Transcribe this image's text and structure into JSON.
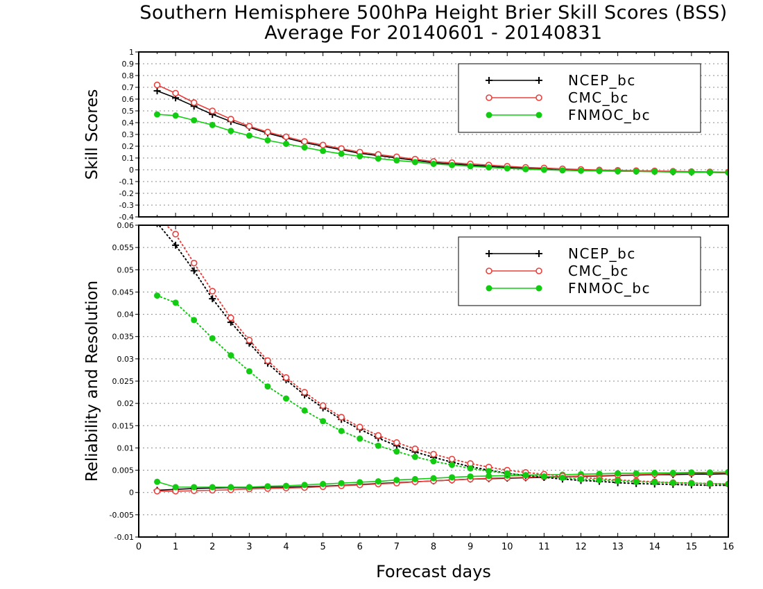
{
  "title": "Southern Hemisphere 500hPa Height Brier Skill Scores (BSS)",
  "subtitle": "Average For 20140601 - 20140831",
  "colors": {
    "ncep": "#000000",
    "cmc": "#e8403c",
    "fnmoc": "#11cc11",
    "grid": "#888888"
  },
  "chart_data": [
    {
      "type": "line",
      "ylabel": "Skill Scores",
      "ylim": [
        -0.4,
        1
      ],
      "y_ticks": [
        "1",
        "0.9",
        "0.8",
        "0.7",
        "0.6",
        "0.5",
        "0.4",
        "0.3",
        "0.2",
        "0.1",
        "0",
        "-0.1",
        "-0.2",
        "-0.3",
        "-0.4"
      ],
      "grid": true,
      "legend_position": "top-right",
      "x": [
        0.5,
        1,
        1.5,
        2,
        2.5,
        3,
        3.5,
        4,
        4.5,
        5,
        5.5,
        6,
        6.5,
        7,
        7.5,
        8,
        8.5,
        9,
        9.5,
        10,
        10.5,
        11,
        11.5,
        12,
        12.5,
        13,
        13.5,
        14,
        14.5,
        15,
        15.5,
        16
      ],
      "series": [
        {
          "name": "NCEP_bc",
          "marker": "plus",
          "values": [
            0.67,
            0.61,
            0.54,
            0.47,
            0.41,
            0.36,
            0.31,
            0.27,
            0.23,
            0.2,
            0.17,
            0.14,
            0.12,
            0.1,
            0.08,
            0.06,
            0.05,
            0.04,
            0.03,
            0.02,
            0.015,
            0.01,
            0.005,
            0,
            -0.005,
            -0.01,
            -0.012,
            -0.015,
            -0.018,
            -0.02,
            -0.022,
            -0.025
          ]
        },
        {
          "name": "CMC_bc",
          "marker": "circle-open",
          "values": [
            0.72,
            0.65,
            0.57,
            0.5,
            0.43,
            0.37,
            0.32,
            0.28,
            0.24,
            0.21,
            0.18,
            0.15,
            0.13,
            0.11,
            0.09,
            0.07,
            0.06,
            0.05,
            0.04,
            0.03,
            0.02,
            0.015,
            0.008,
            0.003,
            -0.002,
            -0.005,
            -0.008,
            -0.01,
            -0.013,
            -0.016,
            -0.018,
            -0.02
          ]
        },
        {
          "name": "FNMOC_bc",
          "marker": "circle-filled",
          "values": [
            0.47,
            0.46,
            0.42,
            0.38,
            0.33,
            0.29,
            0.25,
            0.22,
            0.19,
            0.16,
            0.135,
            0.115,
            0.095,
            0.08,
            0.065,
            0.05,
            0.04,
            0.03,
            0.02,
            0.012,
            0.005,
            0,
            -0.005,
            -0.008,
            -0.01,
            -0.012,
            -0.014,
            -0.016,
            -0.018,
            -0.02,
            -0.022,
            -0.025
          ]
        }
      ]
    },
    {
      "type": "line",
      "xlabel": "Forecast days",
      "ylabel": "Reliability and Resolution",
      "ylim": [
        -0.01,
        0.06
      ],
      "y_ticks": [
        "0.06",
        "0.055",
        "0.05",
        "0.045",
        "0.04",
        "0.035",
        "0.03",
        "0.025",
        "0.02",
        "0.015",
        "0.01",
        "0.005",
        "0",
        "-0.005",
        "-0.01"
      ],
      "xlim": [
        0,
        16
      ],
      "x_ticks": [
        "0",
        "1",
        "2",
        "3",
        "4",
        "5",
        "6",
        "7",
        "8",
        "9",
        "10",
        "11",
        "12",
        "13",
        "14",
        "15",
        "16"
      ],
      "grid": true,
      "legend_position": "top-right",
      "x": [
        0.5,
        1,
        1.5,
        2,
        2.5,
        3,
        3.5,
        4,
        4.5,
        5,
        5.5,
        6,
        6.5,
        7,
        7.5,
        8,
        8.5,
        9,
        9.5,
        10,
        10.5,
        11,
        11.5,
        12,
        12.5,
        13,
        13.5,
        14,
        14.5,
        15,
        15.5,
        16
      ],
      "series": [
        {
          "name": "NCEP_bc",
          "style": "solid",
          "marker": "plus",
          "values": [
            0.0005,
            0.0007,
            0.0009,
            0.001,
            0.0011,
            0.0011,
            0.0012,
            0.0012,
            0.0013,
            0.0014,
            0.0016,
            0.0018,
            0.002,
            0.0022,
            0.0024,
            0.0026,
            0.0028,
            0.003,
            0.0031,
            0.0032,
            0.0033,
            0.0034,
            0.0035,
            0.0036,
            0.0037,
            0.0038,
            0.0039,
            0.004,
            0.004,
            0.0041,
            0.0041,
            0.0042
          ]
        },
        {
          "name": "CMC_bc",
          "style": "solid",
          "marker": "circle-open",
          "values": [
            0.0003,
            0.0003,
            0.0004,
            0.0005,
            0.0006,
            0.0008,
            0.0009,
            0.001,
            0.0011,
            0.0013,
            0.0015,
            0.0017,
            0.0019,
            0.0021,
            0.0024,
            0.0026,
            0.0028,
            0.003,
            0.0032,
            0.0033,
            0.0034,
            0.0035,
            0.0036,
            0.0037,
            0.0038,
            0.0039,
            0.004,
            0.0041,
            0.0042,
            0.0043,
            0.0044,
            0.0045
          ]
        },
        {
          "name": "FNMOC_bc",
          "style": "solid",
          "marker": "circle-filled",
          "values": [
            0.0024,
            0.0012,
            0.0012,
            0.0012,
            0.0012,
            0.0012,
            0.0014,
            0.0015,
            0.0017,
            0.0019,
            0.0021,
            0.0023,
            0.0025,
            0.0028,
            0.003,
            0.0032,
            0.0034,
            0.0036,
            0.0037,
            0.0038,
            0.0039,
            0.004,
            0.004,
            0.0041,
            0.0042,
            0.0043,
            0.0043,
            0.0044,
            0.0044,
            0.0045,
            0.0045,
            0.0046
          ]
        },
        {
          "name": "NCEP_bc",
          "style": "dotted",
          "marker": "plus",
          "values": [
            0.0605,
            0.0555,
            0.0498,
            0.0435,
            0.0382,
            0.0335,
            0.029,
            0.0253,
            0.0219,
            0.019,
            0.0164,
            0.0142,
            0.0122,
            0.0105,
            0.0091,
            0.0079,
            0.0068,
            0.0058,
            0.005,
            0.0043,
            0.0038,
            0.0034,
            0.003,
            0.0027,
            0.0025,
            0.0022,
            0.002,
            0.0019,
            0.0018,
            0.0017,
            0.0016,
            0.0016
          ]
        },
        {
          "name": "CMC_bc",
          "style": "dotted",
          "marker": "circle-open",
          "values": [
            0.062,
            0.058,
            0.0515,
            0.0452,
            0.0392,
            0.0342,
            0.0296,
            0.0258,
            0.0225,
            0.0195,
            0.0169,
            0.0147,
            0.0128,
            0.0112,
            0.0098,
            0.0086,
            0.0075,
            0.0065,
            0.0057,
            0.005,
            0.0045,
            0.0041,
            0.0037,
            0.0034,
            0.0031,
            0.0028,
            0.0026,
            0.0024,
            0.0022,
            0.0021,
            0.002,
            0.0019
          ]
        },
        {
          "name": "FNMOC_bc",
          "style": "dotted",
          "marker": "circle-filled",
          "values": [
            0.0442,
            0.0426,
            0.0387,
            0.0346,
            0.0308,
            0.0272,
            0.0238,
            0.0211,
            0.0184,
            0.016,
            0.0138,
            0.0121,
            0.0105,
            0.0092,
            0.008,
            0.007,
            0.0062,
            0.0054,
            0.0048,
            0.0043,
            0.0039,
            0.0036,
            0.0033,
            0.003,
            0.0028,
            0.0026,
            0.0024,
            0.0023,
            0.0022,
            0.0021,
            0.002,
            0.0019
          ]
        }
      ]
    }
  ]
}
